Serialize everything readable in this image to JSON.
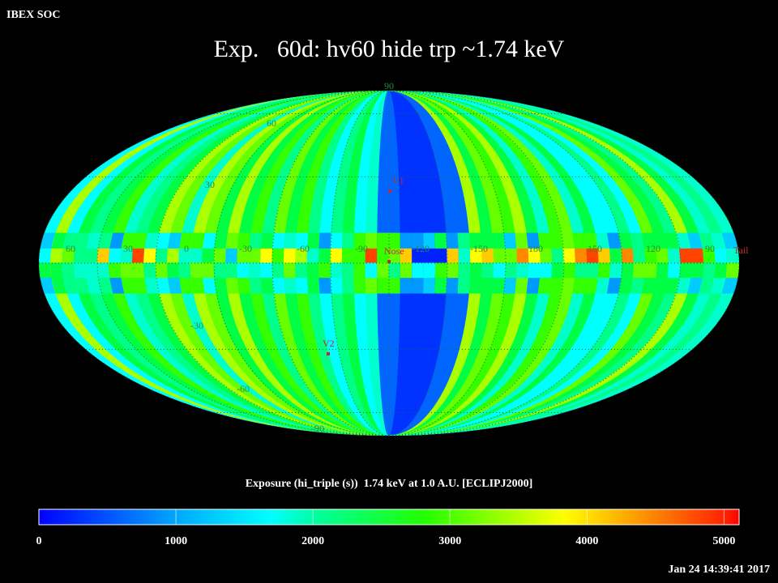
{
  "header": {
    "source": "IBEX SOC",
    "title": "Exp.   60d: hv60 hide trp ~1.74 keV",
    "timestamp": "Jan 24 14:39:41 2017"
  },
  "map": {
    "longitude_labels": [
      "60",
      "30",
      "0",
      "-30",
      "-60",
      "-90",
      "-120",
      "-150",
      "180",
      "150",
      "120",
      "90"
    ],
    "latitude_labels": [
      "90",
      "60",
      "30",
      "-30",
      "-60",
      "-90"
    ],
    "markers": [
      "V1",
      "Nose",
      "V2",
      "Tail"
    ]
  },
  "colorbar": {
    "label": "Exposure (hi_triple (s))  1.74 keV at 1.0 A.U. [ECLIPJ2000]",
    "range": [
      0,
      5110
    ],
    "ticks": [
      0,
      1000,
      2000,
      3000,
      4000,
      5000
    ]
  }
}
